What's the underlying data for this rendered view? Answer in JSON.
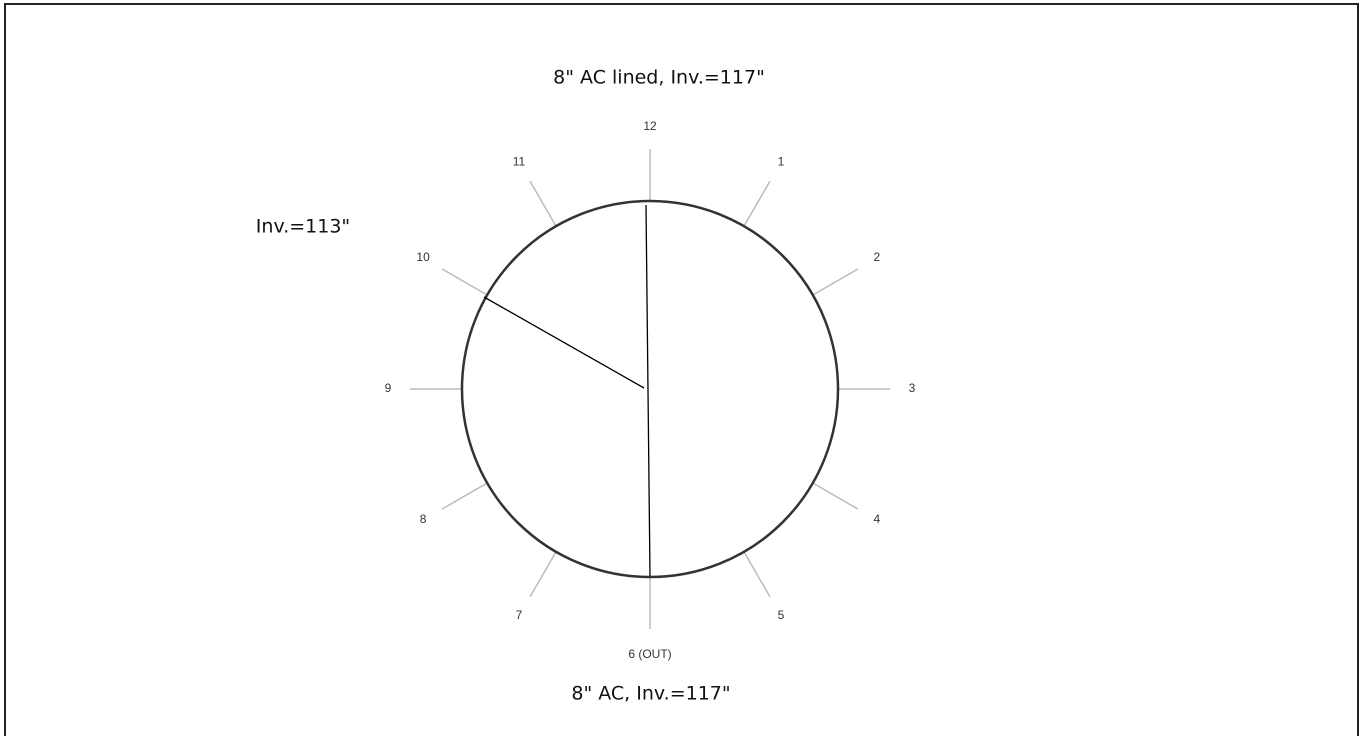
{
  "diagram": {
    "top_label": "8\" AC lined, Inv.=117\"",
    "left_label": "Inv.=113\"",
    "bottom_label": "8\" AC, Inv.=117\"",
    "clock_labels": [
      "12",
      "1",
      "2",
      "3",
      "4",
      "5",
      "6 (OUT)",
      "7",
      "8",
      "9",
      "10",
      "11"
    ]
  }
}
